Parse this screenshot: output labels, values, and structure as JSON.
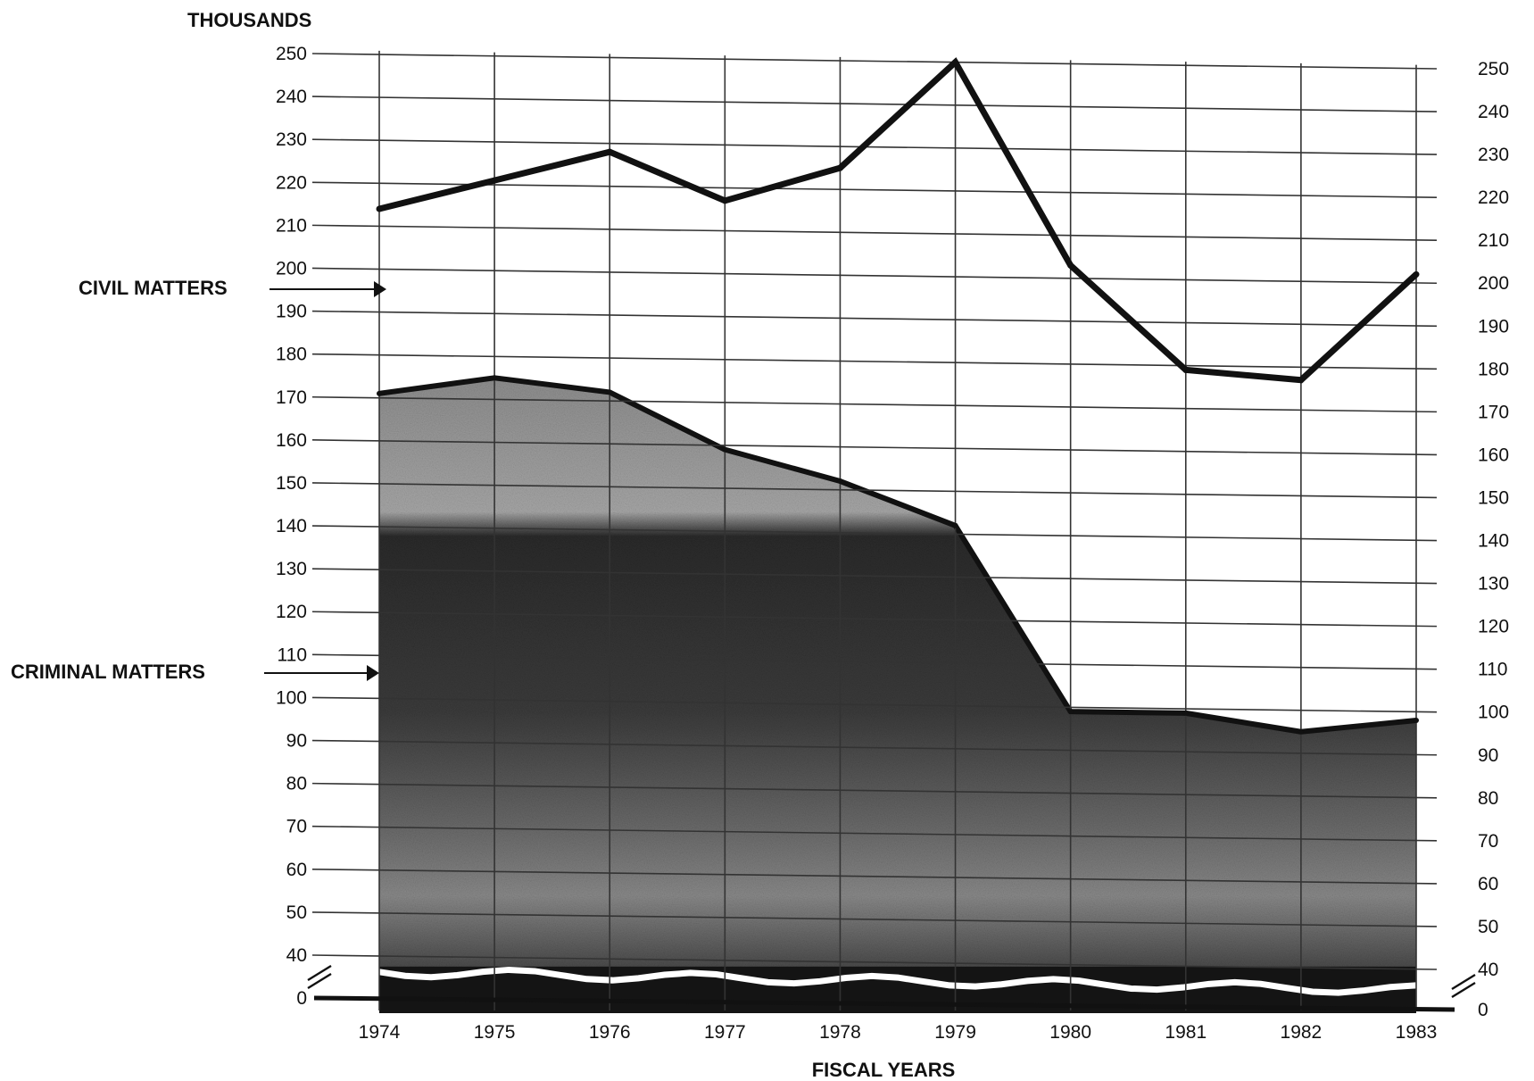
{
  "chart_data": {
    "type": "area",
    "ylabel": "THOUSANDS",
    "xlabel": "FISCAL YEARS",
    "x": [
      "1974",
      "1975",
      "1976",
      "1977",
      "1978",
      "1979",
      "1980",
      "1981",
      "1982",
      "1983"
    ],
    "ylim": [
      40,
      250
    ],
    "y_break": true,
    "y_ticks": [
      "0",
      "40",
      "50",
      "60",
      "70",
      "80",
      "90",
      "100",
      "110",
      "120",
      "130",
      "140",
      "150",
      "160",
      "170",
      "180",
      "190",
      "200",
      "210",
      "220",
      "230",
      "240",
      "250"
    ],
    "grid": true,
    "series": [
      {
        "name": "CIVIL MATTERS",
        "type": "line",
        "values": [
          214,
          221,
          228,
          217,
          225,
          250,
          203,
          179,
          177,
          202
        ]
      },
      {
        "name": "CRIMINAL MATTERS",
        "type": "area",
        "values": [
          171,
          175,
          172,
          159,
          152,
          142,
          99,
          99,
          95,
          98
        ]
      }
    ],
    "colors": {
      "line": "#111111",
      "area_dark": "#2a2a2a",
      "area_light": "#9a9a9a",
      "grid": "#333333"
    }
  }
}
